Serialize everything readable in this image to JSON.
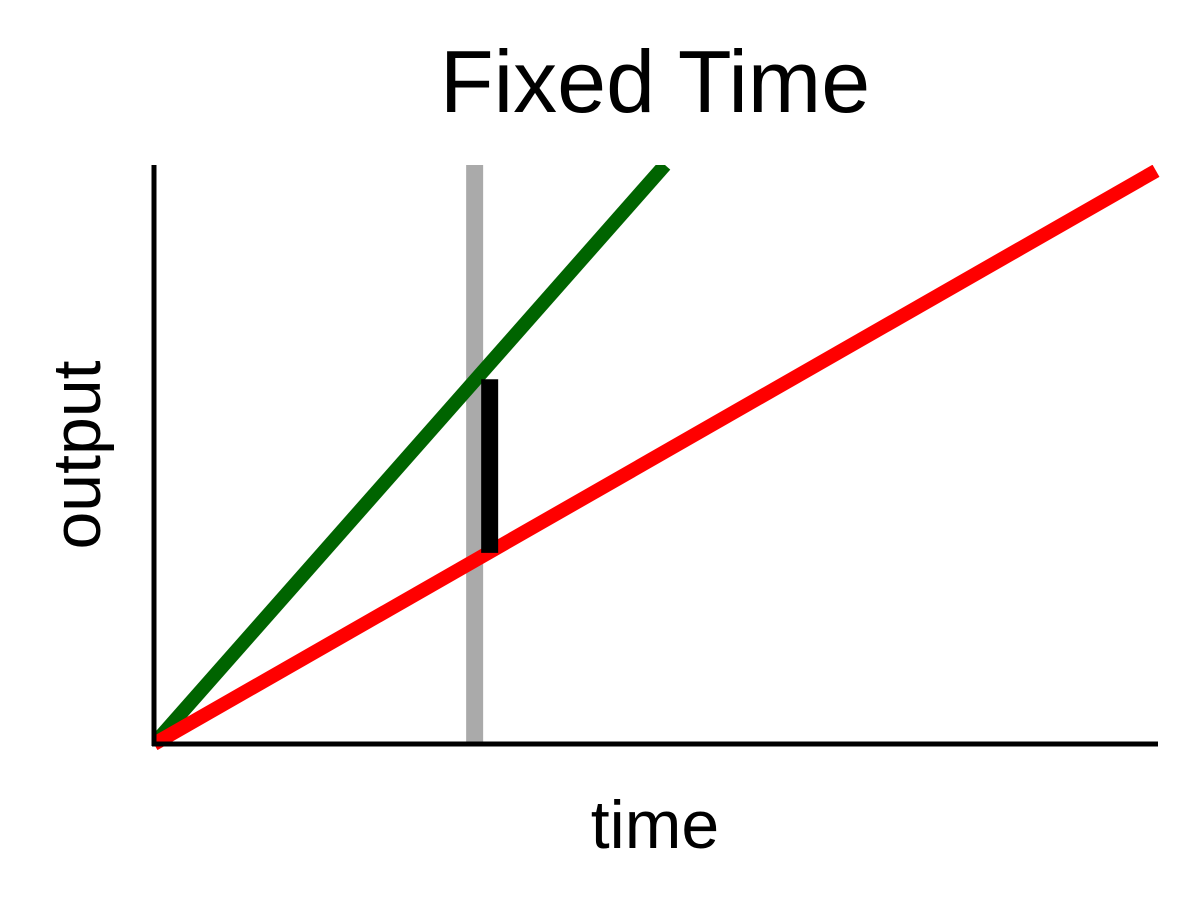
{
  "chart_data": {
    "type": "line",
    "title": "Fixed Time",
    "xlabel": "time",
    "ylabel": "output",
    "xlim": [
      0,
      10
    ],
    "ylim": [
      0,
      10
    ],
    "grid": false,
    "legend": "none",
    "series": [
      {
        "color": "#006400",
        "x": [
          0,
          5.1
        ],
        "y": [
          0,
          10
        ]
      },
      {
        "color": "#ff0000",
        "x": [
          0,
          10
        ],
        "y": [
          0,
          9.9
        ]
      }
    ],
    "reference_line": {
      "x": 3.2,
      "color": "#aaaaaa"
    },
    "difference_bar": {
      "x": 3.35,
      "y_from": 3.3,
      "y_to": 6.3,
      "color": "#000000"
    }
  }
}
